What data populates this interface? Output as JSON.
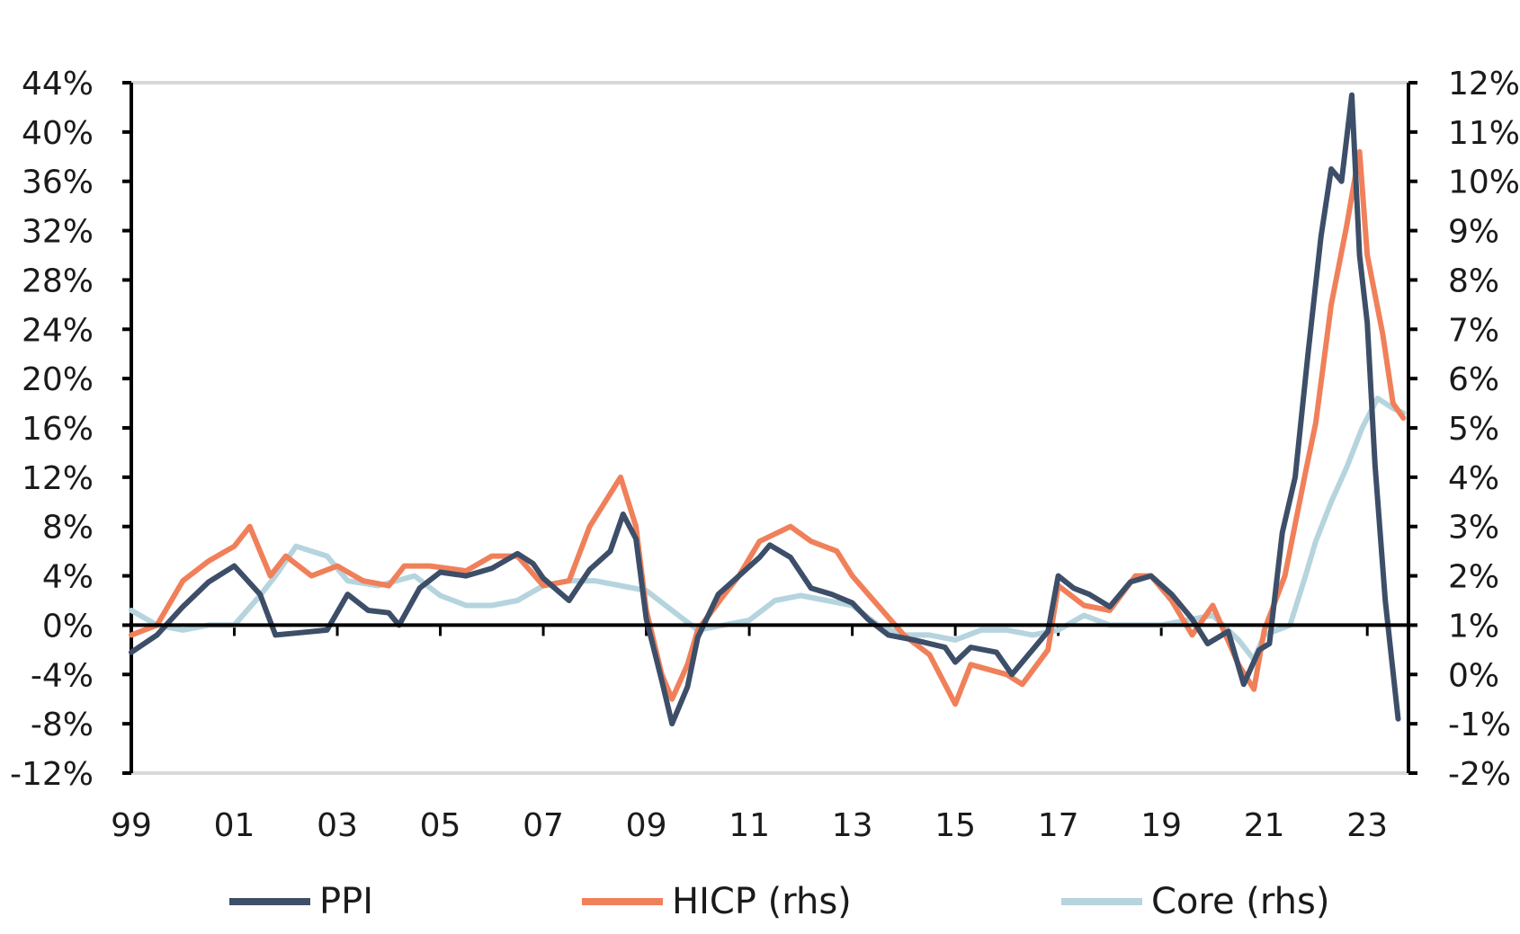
{
  "chart_data": {
    "type": "line",
    "title": "",
    "xlabel": "",
    "ylabel": "",
    "x_ticks": [
      "99",
      "01",
      "03",
      "05",
      "07",
      "09",
      "11",
      "13",
      "15",
      "17",
      "19",
      "21",
      "23"
    ],
    "x_range": [
      1999.0,
      2023.8
    ],
    "y_left": {
      "range": [
        -12,
        44
      ],
      "ticks": [
        44,
        40,
        36,
        32,
        28,
        24,
        20,
        16,
        12,
        8,
        4,
        0,
        -4,
        -8,
        -12
      ],
      "tick_labels": [
        "44%",
        "40%",
        "36%",
        "32%",
        "28%",
        "24%",
        "20%",
        "16%",
        "12%",
        "8%",
        "4%",
        "0%",
        "-4%",
        "-8%",
        "-12%"
      ]
    },
    "y_right": {
      "range": [
        -2,
        12
      ],
      "ticks": [
        12,
        11,
        10,
        9,
        8,
        7,
        6,
        5,
        4,
        3,
        2,
        1,
        0,
        -1,
        -2
      ],
      "tick_labels": [
        "12%",
        "11%",
        "10%",
        "9%",
        "8%",
        "7%",
        "6%",
        "5%",
        "4%",
        "3%",
        "2%",
        "1%",
        "0%",
        "-1%",
        "-2%"
      ]
    },
    "gridlines": "top and bottom horizontal only",
    "zero_line": true,
    "legend_position": "bottom",
    "series": [
      {
        "name": "PPI",
        "axis": "left",
        "color": "#3d4e68",
        "points": [
          [
            1999.0,
            -2.2
          ],
          [
            1999.5,
            -0.8
          ],
          [
            2000.0,
            1.5
          ],
          [
            2000.5,
            3.5
          ],
          [
            2001.0,
            4.8
          ],
          [
            2001.5,
            2.5
          ],
          [
            2001.8,
            -0.8
          ],
          [
            2002.3,
            -0.6
          ],
          [
            2002.8,
            -0.4
          ],
          [
            2003.2,
            2.5
          ],
          [
            2003.6,
            1.2
          ],
          [
            2004.0,
            1.0
          ],
          [
            2004.2,
            0.0
          ],
          [
            2004.6,
            3.0
          ],
          [
            2005.0,
            4.3
          ],
          [
            2005.5,
            4.0
          ],
          [
            2006.0,
            4.6
          ],
          [
            2006.5,
            5.8
          ],
          [
            2006.8,
            5.0
          ],
          [
            2007.0,
            3.8
          ],
          [
            2007.5,
            2.0
          ],
          [
            2007.9,
            4.5
          ],
          [
            2008.3,
            6.0
          ],
          [
            2008.55,
            9.0
          ],
          [
            2008.8,
            7.0
          ],
          [
            2009.0,
            0.5
          ],
          [
            2009.3,
            -4.5
          ],
          [
            2009.5,
            -8.0
          ],
          [
            2009.8,
            -5.0
          ],
          [
            2010.0,
            -1.0
          ],
          [
            2010.4,
            2.5
          ],
          [
            2010.8,
            4.0
          ],
          [
            2011.2,
            5.5
          ],
          [
            2011.4,
            6.5
          ],
          [
            2011.8,
            5.5
          ],
          [
            2012.2,
            3.0
          ],
          [
            2012.6,
            2.5
          ],
          [
            2013.0,
            1.8
          ],
          [
            2013.3,
            0.5
          ],
          [
            2013.7,
            -0.8
          ],
          [
            2014.2,
            -1.2
          ],
          [
            2014.8,
            -1.8
          ],
          [
            2015.0,
            -3.0
          ],
          [
            2015.3,
            -1.8
          ],
          [
            2015.8,
            -2.2
          ],
          [
            2016.1,
            -4.0
          ],
          [
            2016.5,
            -2.0
          ],
          [
            2016.8,
            -0.5
          ],
          [
            2017.0,
            4.0
          ],
          [
            2017.3,
            3.0
          ],
          [
            2017.6,
            2.5
          ],
          [
            2018.0,
            1.5
          ],
          [
            2018.4,
            3.5
          ],
          [
            2018.8,
            4.0
          ],
          [
            2019.2,
            2.5
          ],
          [
            2019.6,
            0.5
          ],
          [
            2019.9,
            -1.5
          ],
          [
            2020.3,
            -0.5
          ],
          [
            2020.6,
            -4.8
          ],
          [
            2020.9,
            -2.0
          ],
          [
            2021.1,
            -1.5
          ],
          [
            2021.35,
            7.5
          ],
          [
            2021.6,
            12.0
          ],
          [
            2021.85,
            22.0
          ],
          [
            2022.1,
            31.5
          ],
          [
            2022.3,
            37.0
          ],
          [
            2022.5,
            36.0
          ],
          [
            2022.7,
            43.0
          ],
          [
            2022.85,
            30.0
          ],
          [
            2023.0,
            24.5
          ],
          [
            2023.15,
            13.0
          ],
          [
            2023.35,
            2.0
          ],
          [
            2023.6,
            -7.6
          ]
        ]
      },
      {
        "name": "HICP (rhs)",
        "axis": "right",
        "color": "#f0805a",
        "points": [
          [
            1999.0,
            0.8
          ],
          [
            1999.5,
            1.0
          ],
          [
            2000.0,
            1.9
          ],
          [
            2000.5,
            2.3
          ],
          [
            2001.0,
            2.6
          ],
          [
            2001.3,
            3.0
          ],
          [
            2001.7,
            2.0
          ],
          [
            2002.0,
            2.4
          ],
          [
            2002.5,
            2.0
          ],
          [
            2003.0,
            2.2
          ],
          [
            2003.5,
            1.9
          ],
          [
            2004.0,
            1.8
          ],
          [
            2004.3,
            2.2
          ],
          [
            2004.8,
            2.2
          ],
          [
            2005.5,
            2.1
          ],
          [
            2006.0,
            2.4
          ],
          [
            2006.5,
            2.4
          ],
          [
            2007.0,
            1.8
          ],
          [
            2007.5,
            1.9
          ],
          [
            2007.9,
            3.0
          ],
          [
            2008.2,
            3.5
          ],
          [
            2008.5,
            4.0
          ],
          [
            2008.8,
            3.0
          ],
          [
            2009.0,
            1.3
          ],
          [
            2009.3,
            0.0
          ],
          [
            2009.5,
            -0.5
          ],
          [
            2009.8,
            0.2
          ],
          [
            2010.0,
            0.9
          ],
          [
            2010.5,
            1.6
          ],
          [
            2010.8,
            2.0
          ],
          [
            2011.2,
            2.7
          ],
          [
            2011.8,
            3.0
          ],
          [
            2012.2,
            2.7
          ],
          [
            2012.7,
            2.5
          ],
          [
            2013.0,
            2.0
          ],
          [
            2013.5,
            1.4
          ],
          [
            2014.0,
            0.8
          ],
          [
            2014.5,
            0.4
          ],
          [
            2015.0,
            -0.6
          ],
          [
            2015.3,
            0.2
          ],
          [
            2016.0,
            0.0
          ],
          [
            2016.3,
            -0.2
          ],
          [
            2016.8,
            0.5
          ],
          [
            2017.0,
            1.8
          ],
          [
            2017.5,
            1.4
          ],
          [
            2018.0,
            1.3
          ],
          [
            2018.5,
            2.0
          ],
          [
            2018.8,
            2.0
          ],
          [
            2019.2,
            1.5
          ],
          [
            2019.6,
            0.8
          ],
          [
            2020.0,
            1.4
          ],
          [
            2020.5,
            0.2
          ],
          [
            2020.8,
            -0.3
          ],
          [
            2021.0,
            0.9
          ],
          [
            2021.4,
            2.0
          ],
          [
            2021.8,
            4.1
          ],
          [
            2022.0,
            5.1
          ],
          [
            2022.3,
            7.5
          ],
          [
            2022.6,
            9.1
          ],
          [
            2022.85,
            10.6
          ],
          [
            2023.0,
            8.5
          ],
          [
            2023.3,
            6.9
          ],
          [
            2023.5,
            5.5
          ],
          [
            2023.7,
            5.2
          ]
        ]
      },
      {
        "name": "Core (rhs)",
        "axis": "right",
        "color": "#b5d4de",
        "points": [
          [
            1999.0,
            1.3
          ],
          [
            1999.5,
            1.0
          ],
          [
            2000.0,
            0.9
          ],
          [
            2000.5,
            1.0
          ],
          [
            2001.0,
            1.0
          ],
          [
            2001.5,
            1.6
          ],
          [
            2001.8,
            2.0
          ],
          [
            2002.2,
            2.6
          ],
          [
            2002.8,
            2.4
          ],
          [
            2003.2,
            1.9
          ],
          [
            2003.8,
            1.8
          ],
          [
            2004.5,
            2.0
          ],
          [
            2005.0,
            1.6
          ],
          [
            2005.5,
            1.4
          ],
          [
            2006.0,
            1.4
          ],
          [
            2006.5,
            1.5
          ],
          [
            2007.0,
            1.8
          ],
          [
            2007.5,
            1.9
          ],
          [
            2008.0,
            1.9
          ],
          [
            2008.5,
            1.8
          ],
          [
            2009.0,
            1.7
          ],
          [
            2009.5,
            1.3
          ],
          [
            2010.0,
            0.9
          ],
          [
            2010.5,
            1.0
          ],
          [
            2011.0,
            1.1
          ],
          [
            2011.5,
            1.5
          ],
          [
            2012.0,
            1.6
          ],
          [
            2012.5,
            1.5
          ],
          [
            2013.0,
            1.4
          ],
          [
            2013.5,
            1.0
          ],
          [
            2014.0,
            0.8
          ],
          [
            2014.5,
            0.8
          ],
          [
            2015.0,
            0.7
          ],
          [
            2015.5,
            0.9
          ],
          [
            2016.0,
            0.9
          ],
          [
            2016.5,
            0.8
          ],
          [
            2017.0,
            0.9
          ],
          [
            2017.5,
            1.2
          ],
          [
            2018.0,
            1.0
          ],
          [
            2018.5,
            1.0
          ],
          [
            2019.0,
            1.0
          ],
          [
            2019.5,
            1.1
          ],
          [
            2020.0,
            1.2
          ],
          [
            2020.5,
            0.7
          ],
          [
            2020.8,
            0.3
          ],
          [
            2021.0,
            0.8
          ],
          [
            2021.5,
            1.0
          ],
          [
            2021.8,
            2.0
          ],
          [
            2022.0,
            2.7
          ],
          [
            2022.3,
            3.5
          ],
          [
            2022.6,
            4.2
          ],
          [
            2022.9,
            5.0
          ],
          [
            2023.2,
            5.6
          ],
          [
            2023.5,
            5.4
          ],
          [
            2023.7,
            5.3
          ]
        ]
      }
    ]
  },
  "legend": [
    {
      "label": "PPI",
      "color": "#3d4e68"
    },
    {
      "label": "HICP (rhs)",
      "color": "#f0805a"
    },
    {
      "label": "Core (rhs)",
      "color": "#b5d4de"
    }
  ]
}
